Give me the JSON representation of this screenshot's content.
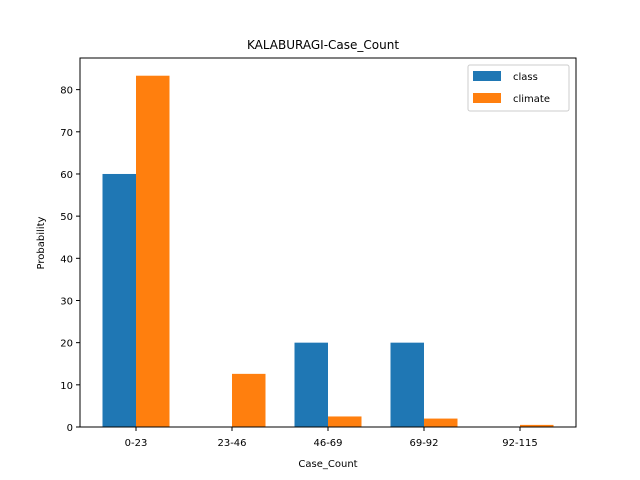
{
  "chart_data": {
    "type": "bar",
    "title": "KALABURAGI-Case_Count",
    "xlabel": "Case_Count",
    "ylabel": "Probability",
    "categories": [
      "0-23",
      "23-46",
      "46-69",
      "69-92",
      "92-115"
    ],
    "series": [
      {
        "name": "class",
        "color": "#1f77b4",
        "values": [
          60,
          0,
          20,
          20,
          0
        ]
      },
      {
        "name": "climate",
        "color": "#ff7f0e",
        "values": [
          83.3,
          12.6,
          2.5,
          2.0,
          0.5
        ]
      }
    ],
    "ylim": [
      0,
      87.5
    ],
    "yticks": [
      0,
      10,
      20,
      30,
      40,
      50,
      60,
      70,
      80
    ],
    "grid": false,
    "legend_position": "top-right"
  }
}
